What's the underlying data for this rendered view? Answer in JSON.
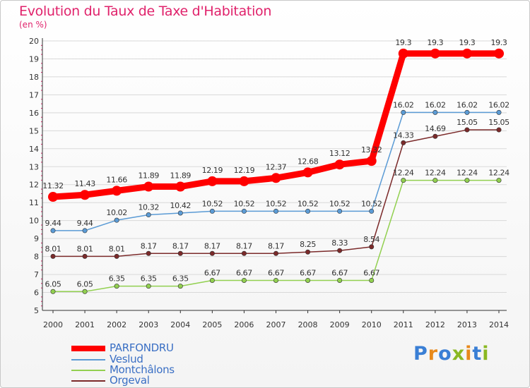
{
  "colors": {
    "title": "#e0226b",
    "legend_text": "#3a6fc4",
    "axis": "#333333",
    "grid": "#d9d9d9"
  },
  "chart_data": {
    "type": "line",
    "title": "Evolution du Taux de Taxe d'Habitation",
    "ylabel": "(en %)",
    "xlabel": "",
    "x": [
      "2000",
      "2001",
      "2002",
      "2003",
      "2004",
      "2005",
      "2006",
      "2007",
      "2008",
      "2009",
      "2010",
      "2011",
      "2012",
      "2013",
      "2014"
    ],
    "ylim": [
      5,
      20
    ],
    "yticks": [
      "5",
      "6",
      "7",
      "8",
      "9",
      "10",
      "11",
      "12",
      "13",
      "14",
      "15",
      "16",
      "17",
      "18",
      "19",
      "20"
    ],
    "grid": "horizontal",
    "legend_position": "bottom-left",
    "series": [
      {
        "name": "PARFONDRU",
        "color": "#ff0000",
        "values": [
          11.32,
          11.43,
          11.66,
          11.89,
          11.89,
          12.19,
          12.19,
          12.37,
          12.68,
          13.12,
          13.32,
          19.3,
          19.3,
          19.3,
          19.3
        ],
        "labels": [
          "11.32",
          "11.43",
          "11.66",
          "11.89",
          "11.89",
          "12.19",
          "12.19",
          "12.37",
          "12.68",
          "13.12",
          "13.32",
          "19.3",
          "19.3",
          "19.3",
          "19.3"
        ]
      },
      {
        "name": "Veslud",
        "color": "#5b9bd5",
        "values": [
          9.44,
          9.44,
          10.02,
          10.32,
          10.42,
          10.52,
          10.52,
          10.52,
          10.52,
          10.52,
          10.52,
          16.02,
          16.02,
          16.02,
          16.02
        ],
        "labels": [
          "9.44",
          "9.44",
          "10.02",
          "10.32",
          "10.42",
          "10.52",
          "10.52",
          "10.52",
          "10.52",
          "10.52",
          "10.52",
          "16.02",
          "16.02",
          "16.02",
          "16.02"
        ]
      },
      {
        "name": "Montchâlons",
        "color": "#92d050",
        "values": [
          6.05,
          6.05,
          6.35,
          6.35,
          6.35,
          6.67,
          6.67,
          6.67,
          6.67,
          6.67,
          6.67,
          12.24,
          12.24,
          12.24,
          12.24
        ],
        "labels": [
          "6.05",
          "6.05",
          "6.35",
          "6.35",
          "6.35",
          "6.67",
          "6.67",
          "6.67",
          "6.67",
          "6.67",
          "6.67",
          "12.24",
          "12.24",
          "12.24",
          "12.24"
        ]
      },
      {
        "name": "Orgeval",
        "color": "#7b2a2a",
        "values": [
          8.01,
          8.01,
          8.01,
          8.17,
          8.17,
          8.17,
          8.17,
          8.17,
          8.25,
          8.33,
          8.54,
          14.33,
          14.69,
          15.05,
          15.05
        ],
        "labels": [
          "8.01",
          "8.01",
          "8.01",
          "8.17",
          "8.17",
          "8.17",
          "8.17",
          "8.17",
          "8.25",
          "8.33",
          "8.54",
          "14.33",
          "14.69",
          "15.05",
          "15.05"
        ]
      }
    ]
  },
  "brand": {
    "text": "Proxiti",
    "letters": [
      {
        "ch": "P",
        "color": "#3a7fd5"
      },
      {
        "ch": "r",
        "color": "#e8891a"
      },
      {
        "ch": "o",
        "color": "#3a7fd5"
      },
      {
        "ch": "x",
        "color": "#8ab823"
      },
      {
        "ch": "i",
        "color": "#e8891a"
      },
      {
        "ch": "t",
        "color": "#3a7fd5"
      },
      {
        "ch": "i",
        "color": "#8ab823"
      }
    ]
  }
}
